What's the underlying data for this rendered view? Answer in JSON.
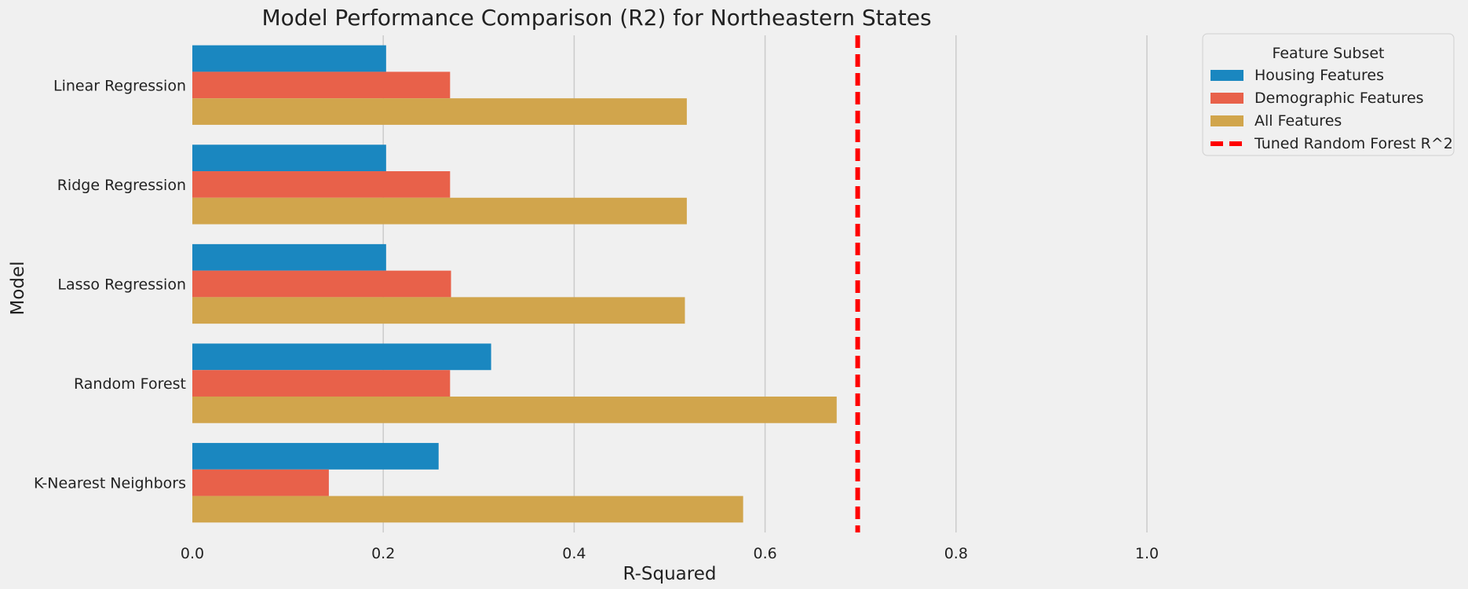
{
  "chart_data": {
    "type": "bar",
    "orientation": "horizontal",
    "title": "Model Performance Comparison (R2) for Northeastern States",
    "xlabel": "R-Squared",
    "ylabel": "Model",
    "xlim": [
      0,
      1.0
    ],
    "xticks": [
      "0.0",
      "0.2",
      "0.4",
      "0.6",
      "0.8",
      "1.0"
    ],
    "grid": "vertical",
    "categories": [
      "Linear Regression",
      "Ridge Regression",
      "Lasso Regression",
      "Random Forest",
      "K-Nearest Neighbors"
    ],
    "series": [
      {
        "name": "Housing Features",
        "color": "#1a87c0",
        "values": [
          0.203,
          0.203,
          0.203,
          0.313,
          0.258
        ]
      },
      {
        "name": "Demographic Features",
        "color": "#e8614a",
        "values": [
          0.27,
          0.27,
          0.271,
          0.27,
          0.143
        ]
      },
      {
        "name": "All Features",
        "color": "#d1a54c",
        "values": [
          0.518,
          0.518,
          0.516,
          0.675,
          0.577
        ]
      }
    ],
    "reference_line": {
      "name": "Tuned Random Forest R^2",
      "value": 0.697,
      "color": "#ff0000",
      "style": "dashed"
    },
    "legend": {
      "title": "Feature Subset",
      "placement": "outside-top-right"
    }
  }
}
